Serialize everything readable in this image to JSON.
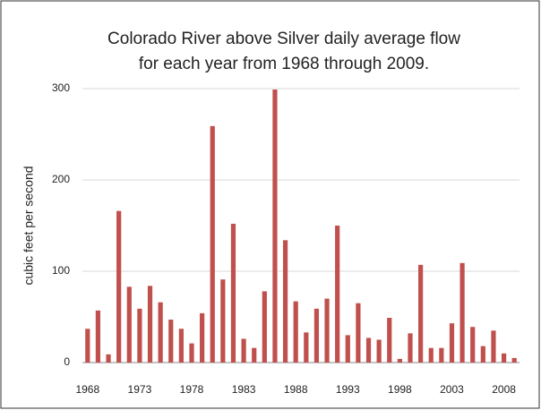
{
  "chart_data": {
    "type": "bar",
    "title": [
      "Colorado River above Silver daily average flow",
      "for each year from 1968 through 2009."
    ],
    "y_label": "cubic feet per second",
    "categories": [
      "1968",
      null,
      null,
      null,
      null,
      "1973",
      null,
      null,
      null,
      null,
      "1978",
      null,
      null,
      null,
      null,
      "1983",
      null,
      null,
      null,
      null,
      "1988",
      null,
      null,
      null,
      null,
      "1993",
      null,
      null,
      null,
      null,
      "1998",
      null,
      null,
      null,
      null,
      "2003",
      null,
      null,
      null,
      null,
      "2008",
      null
    ],
    "values": [
      37,
      57,
      9,
      166,
      83,
      59,
      84,
      66,
      47,
      37,
      21,
      54,
      259,
      91,
      152,
      26,
      16,
      78,
      299,
      134,
      67,
      33,
      59,
      70,
      150,
      30,
      65,
      27,
      25,
      49,
      4,
      32,
      107,
      16,
      16,
      43,
      109,
      39,
      18,
      35,
      10,
      5
    ],
    "color": "#c0504d",
    "ylim": [
      0,
      300
    ],
    "yticks": [
      0,
      100,
      200,
      300
    ],
    "grid": true
  }
}
